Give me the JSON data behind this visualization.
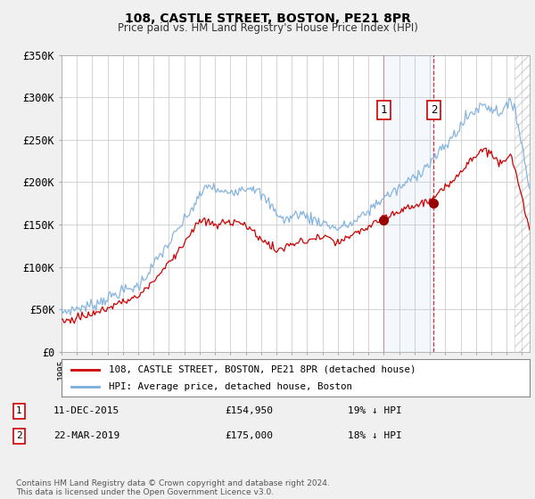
{
  "title": "108, CASTLE STREET, BOSTON, PE21 8PR",
  "subtitle": "Price paid vs. HM Land Registry's House Price Index (HPI)",
  "legend_line1": "108, CASTLE STREET, BOSTON, PE21 8PR (detached house)",
  "legend_line2": "HPI: Average price, detached house, Boston",
  "annotation1_date": "11-DEC-2015",
  "annotation1_price": "£154,950",
  "annotation1_hpi": "19% ↓ HPI",
  "annotation1_year": 2016.0,
  "annotation2_date": "22-MAR-2019",
  "annotation2_price": "£175,000",
  "annotation2_hpi": "18% ↓ HPI",
  "annotation2_year": 2019.25,
  "ylabel_ticks": [
    "£0",
    "£50K",
    "£100K",
    "£150K",
    "£200K",
    "£250K",
    "£300K",
    "£350K"
  ],
  "ytick_values": [
    0,
    50000,
    100000,
    150000,
    200000,
    250000,
    300000,
    350000
  ],
  "xmin": 1995,
  "xmax": 2025.5,
  "ymin": 0,
  "ymax": 350000,
  "hpi_color": "#7aaddc",
  "price_color": "#cc0000",
  "bg_color": "#f0f0f0",
  "plot_bg": "#ffffff",
  "grid_color": "#cccccc",
  "footnote": "Contains HM Land Registry data © Crown copyright and database right 2024.\nThis data is licensed under the Open Government Licence v3.0.",
  "hatch_start": 2024.5
}
